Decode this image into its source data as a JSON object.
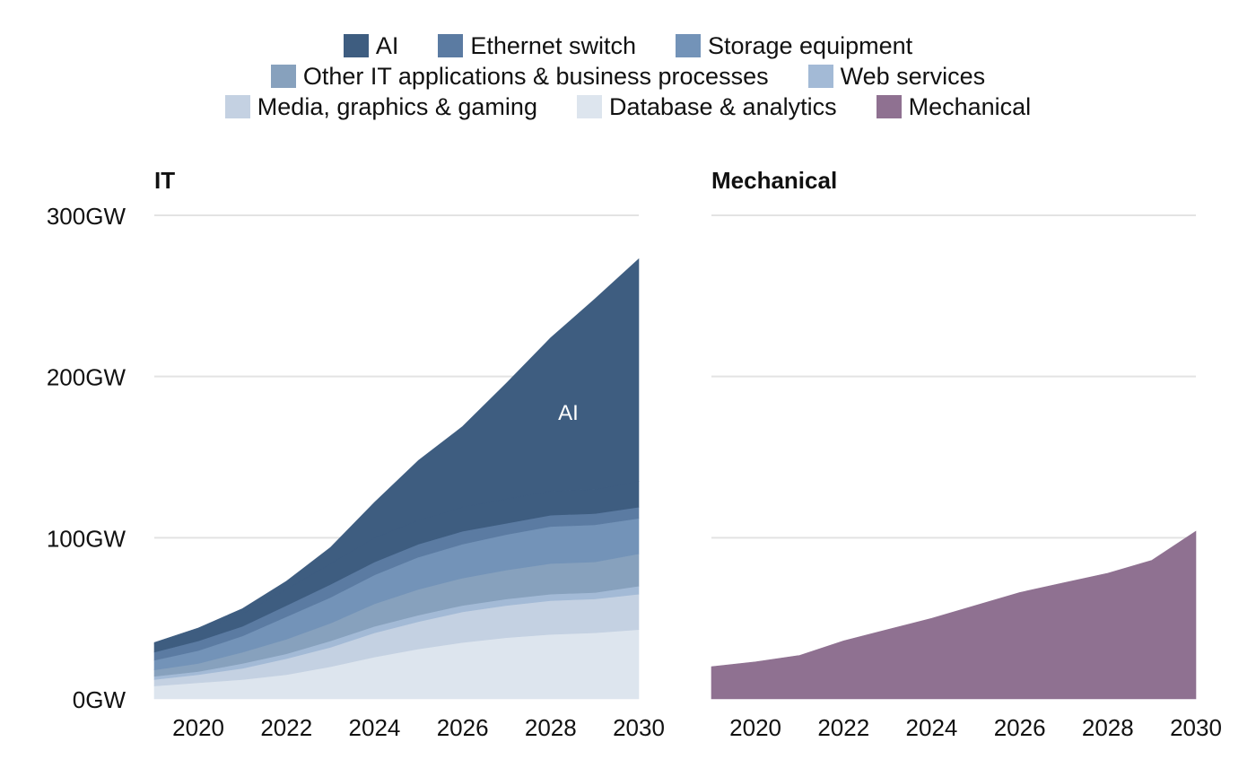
{
  "legend": {
    "rows": [
      [
        "AI",
        "Ethernet switch",
        "Storage equipment"
      ],
      [
        "Other IT applications & business processes",
        "Web services"
      ],
      [
        "Media, graphics & gaming",
        "Database & analytics",
        "Mechanical"
      ]
    ]
  },
  "colors": {
    "AI": "#3e5d80",
    "Ethernet switch": "#5b7ba2",
    "Storage equipment": "#7393b8",
    "Other IT applications & business processes": "#87a1bd",
    "Web services": "#a3bad6",
    "Media, graphics & gaming": "#c4d1e2",
    "Database & analytics": "#dde5ee",
    "Mechanical": "#8f7191"
  },
  "chart_data": [
    {
      "type": "area",
      "stacked": true,
      "title": "IT",
      "x": [
        2019,
        2020,
        2021,
        2022,
        2023,
        2024,
        2025,
        2026,
        2027,
        2028,
        2029,
        2030
      ],
      "x_ticks": [
        2020,
        2022,
        2024,
        2026,
        2028,
        2030
      ],
      "x_tick_labels": [
        "2020",
        "2022",
        "2024",
        "2026",
        "2028",
        "2030"
      ],
      "ylim": [
        0,
        300
      ],
      "y_ticks": [
        0,
        100,
        200,
        300
      ],
      "y_tick_labels": [
        "0GW",
        "100GW",
        "200GW",
        "300GW"
      ],
      "annotation": {
        "text": "AI",
        "x": 2028.4,
        "y": 173
      },
      "series": [
        {
          "name": "Database & analytics",
          "values": [
            8,
            10,
            12,
            15,
            20,
            26,
            31,
            35,
            38,
            40,
            41,
            43
          ]
        },
        {
          "name": "Media, graphics & gaming",
          "values": [
            4,
            5,
            7,
            10,
            12,
            15,
            17,
            19,
            20,
            21,
            21,
            22
          ]
        },
        {
          "name": "Web services",
          "values": [
            2,
            2,
            3,
            3,
            4,
            4,
            4,
            4,
            4,
            4,
            4,
            5
          ]
        },
        {
          "name": "Other IT applications & business processes",
          "values": [
            4,
            5,
            7,
            9,
            11,
            14,
            16,
            17,
            18,
            19,
            19,
            20
          ]
        },
        {
          "name": "Storage equipment",
          "values": [
            6,
            8,
            10,
            14,
            16,
            18,
            20,
            21,
            22,
            23,
            23,
            22
          ]
        },
        {
          "name": "Ethernet switch",
          "values": [
            5,
            6,
            6,
            7,
            8,
            8,
            8,
            8,
            7,
            7,
            7,
            7
          ]
        },
        {
          "name": "AI",
          "values": [
            5,
            6,
            8,
            10,
            13,
            15,
            15,
            15,
            15,
            15,
            15,
            16
          ]
        },
        {
          "name": "AI",
          "values": [
            1,
            2,
            3,
            5,
            10,
            22,
            37,
            50,
            72,
            95,
            118,
            138
          ]
        }
      ]
    },
    {
      "type": "area",
      "stacked": false,
      "title": "Mechanical",
      "x": [
        2019,
        2020,
        2021,
        2022,
        2023,
        2024,
        2025,
        2026,
        2027,
        2028,
        2029,
        2030
      ],
      "x_ticks": [
        2020,
        2022,
        2024,
        2026,
        2028,
        2030
      ],
      "x_tick_labels": [
        "2020",
        "2022",
        "2024",
        "2026",
        "2028",
        "2030"
      ],
      "ylim": [
        0,
        300
      ],
      "y_ticks": [
        0,
        100,
        200,
        300
      ],
      "series": [
        {
          "name": "Mechanical",
          "values": [
            20,
            23,
            27,
            36,
            43,
            50,
            58,
            66,
            72,
            78,
            86,
            104
          ]
        }
      ]
    }
  ]
}
